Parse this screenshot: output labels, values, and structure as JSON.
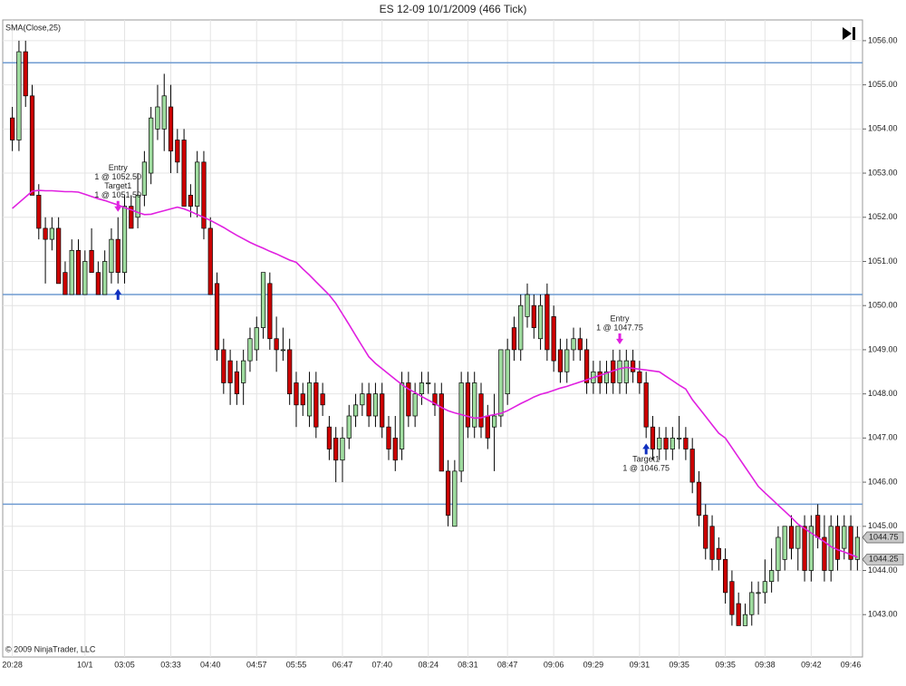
{
  "chart_data": {
    "type": "candlestick",
    "title": "ES 12-09  10/1/2009 (466 Tick)",
    "footer": "© 2009 NinjaTrader, LLC",
    "categories": [
      "20:28",
      null,
      null,
      null,
      null,
      null,
      null,
      null,
      null,
      null,
      null,
      "10/1",
      null,
      null,
      null,
      null,
      null,
      "03:05",
      null,
      null,
      null,
      null,
      null,
      null,
      "03:33",
      null,
      null,
      null,
      null,
      null,
      "04:40",
      null,
      null,
      null,
      null,
      null,
      null,
      "04:57",
      null,
      null,
      null,
      null,
      null,
      "05:55",
      null,
      null,
      null,
      null,
      null,
      null,
      "06:47",
      null,
      null,
      null,
      null,
      null,
      "07:40",
      null,
      null,
      null,
      null,
      null,
      null,
      "08:24",
      null,
      null,
      null,
      null,
      null,
      "08:31",
      null,
      null,
      null,
      null,
      null,
      "08:47",
      null,
      null,
      null,
      null,
      null,
      null,
      "09:06",
      null,
      null,
      null,
      null,
      null,
      "09:29",
      null,
      null,
      null,
      null,
      null,
      null,
      "09:31",
      null,
      null,
      null,
      null,
      null,
      "09:35",
      null,
      null,
      null,
      null,
      null,
      null,
      "09:35",
      null,
      null,
      null,
      null,
      null,
      "09:38",
      null,
      null,
      null,
      null,
      null,
      null,
      "09:42",
      null,
      null,
      null,
      null,
      null,
      "09:46",
      null
    ],
    "open": [
      1054.25,
      1053.75,
      1055.75,
      1054.75,
      1052.5,
      1051.75,
      1051.5,
      1051.75,
      1050.75,
      1050.25,
      1051.25,
      1050.25,
      1051.25,
      1050.75,
      1050.25,
      1050.75,
      1051.5,
      1050.75,
      1052.25,
      1052,
      1052.5,
      1053,
      1054,
      1054,
      1054.5,
      1053.75,
      1053.75,
      1052.5,
      1052.25,
      1053.25,
      1051.75,
      1050.5,
      1049,
      1048.75,
      1048.5,
      1048.25,
      1048.75,
      1049,
      1049.5,
      1050.5,
      1049.25,
      1049,
      1049,
      1048.25,
      1048,
      1047.5,
      1048.25,
      1048,
      1047.25,
      1047,
      1046.5,
      1047,
      1047.5,
      1047.75,
      1048,
      1047.5,
      1048,
      1047.25,
      1047,
      1046.75,
      1048.25,
      1047.5,
      1048,
      1048.25,
      1048,
      1048,
      1046.25,
      1045,
      1046.25,
      1048.25,
      1047.25,
      1048,
      1047.5,
      1047.25,
      1047.5,
      1048,
      1049.5,
      1049,
      1049.75,
      1050,
      1049.25,
      1050.25,
      1049.75,
      1049,
      1048.5,
      1049,
      1049.25,
      1049,
      1048.25,
      1048.5,
      1048.25,
      1048.75,
      1048.25,
      1048.25,
      1048.75,
      1048.5,
      1048.25,
      1047.25,
      1046.75,
      1047,
      1046.75,
      1047,
      1047,
      1046.75,
      1046,
      1045.25,
      1045,
      1044.5,
      1044.25,
      1043.75,
      1043.25,
      1042.75,
      1043,
      1043.5,
      1043.5,
      1043.75,
      1044,
      1044.25,
      1045,
      1044.5,
      1045,
      1044,
      1045.25,
      1044.75,
      1044,
      1045,
      1044.5,
      1045,
      1044.25
    ],
    "high": [
      1054.5,
      1056,
      1056,
      1055,
      1052.75,
      1052,
      1052,
      1052,
      1051,
      1051.5,
      1051.5,
      1051.25,
      1051.75,
      1051,
      1051.25,
      1051.75,
      1052,
      1052.5,
      1052.5,
      1053,
      1053.5,
      1054.5,
      1055,
      1055.25,
      1055,
      1054,
      1054,
      1052.75,
      1053.5,
      1053.5,
      1052,
      1050.75,
      1049.25,
      1049,
      1048.75,
      1049,
      1049.5,
      1049.75,
      1050.75,
      1050.75,
      1049.75,
      1049.5,
      1049.25,
      1048.5,
      1048.25,
      1048.5,
      1048.5,
      1048.25,
      1047.5,
      1047.25,
      1047.25,
      1047.75,
      1048,
      1048.25,
      1048.25,
      1048.25,
      1048.25,
      1047.5,
      1047.5,
      1048.5,
      1048.5,
      1048.25,
      1048.5,
      1048.5,
      1048.25,
      1048.25,
      1046.5,
      1046.5,
      1048.5,
      1048.5,
      1048.5,
      1048.25,
      1047.75,
      1048,
      1049,
      1049.25,
      1049.75,
      1050.25,
      1050.5,
      1050.25,
      1050.25,
      1050.5,
      1050,
      1049.25,
      1049.25,
      1049.5,
      1049.5,
      1049.25,
      1048.75,
      1048.75,
      1048.75,
      1049,
      1049,
      1049,
      1049,
      1048.75,
      1048.5,
      1047.5,
      1047.25,
      1047.25,
      1047.25,
      1047.5,
      1047.25,
      1047,
      1046.25,
      1045.5,
      1045.25,
      1044.75,
      1044.5,
      1044,
      1043.5,
      1043.25,
      1043.75,
      1043.75,
      1044.25,
      1044.5,
      1045,
      1045,
      1045.25,
      1045,
      1045.25,
      1045.25,
      1045.5,
      1045.25,
      1045.25,
      1045.25,
      1045.25,
      1045.25,
      1045
    ],
    "low": [
      1053.5,
      1053.5,
      1054.5,
      1052.5,
      1051.5,
      1050.5,
      1051.25,
      1050.5,
      1050.25,
      1050.25,
      1050.25,
      1050.25,
      1050.75,
      1050.25,
      1050.25,
      1050.5,
      1050.5,
      1050.5,
      1051.75,
      1051.75,
      1052.25,
      1052.75,
      1053.75,
      1053.5,
      1053,
      1053,
      1052.25,
      1052,
      1052,
      1051.5,
      1050.25,
      1048.75,
      1048,
      1047.75,
      1047.75,
      1047.75,
      1048.5,
      1048.75,
      1049.25,
      1049,
      1048.5,
      1048.75,
      1047.75,
      1047.25,
      1047.5,
      1047.25,
      1047,
      1047.5,
      1046.5,
      1046,
      1046,
      1046.75,
      1047.25,
      1047.5,
      1047.25,
      1047.25,
      1047,
      1046.5,
      1046.25,
      1046.5,
      1047.25,
      1047.25,
      1047.75,
      1048,
      1047.5,
      1046.25,
      1045,
      1045,
      1046,
      1047,
      1047,
      1047,
      1046.75,
      1046.25,
      1047.25,
      1047.75,
      1048.75,
      1048.75,
      1049.5,
      1049.25,
      1049,
      1048.75,
      1048.5,
      1048.25,
      1048.25,
      1048.75,
      1048.75,
      1048,
      1048,
      1048,
      1048,
      1048,
      1048,
      1048,
      1048.25,
      1048,
      1047,
      1046.5,
      1046.5,
      1046.5,
      1046.5,
      1046.75,
      1046.5,
      1045.75,
      1045,
      1044.25,
      1044,
      1044,
      1043.25,
      1042.75,
      1042.75,
      1042.75,
      1042.75,
      1043,
      1043.25,
      1043.5,
      1043.75,
      1044,
      1044.25,
      1044,
      1043.75,
      1043.75,
      1044.5,
      1043.75,
      1043.75,
      1044,
      1044.25,
      1044,
      1044
    ],
    "close": [
      1053.75,
      1055.75,
      1054.75,
      1052.5,
      1051.75,
      1051.5,
      1051.75,
      1050.5,
      1050.25,
      1051.25,
      1050.25,
      1051,
      1050.75,
      1050.25,
      1051,
      1051.5,
      1050.75,
      1052.25,
      1051.75,
      1052.5,
      1053.25,
      1054.25,
      1054.5,
      1054.75,
      1053.5,
      1053.25,
      1052.25,
      1052.25,
      1053.25,
      1051.75,
      1050.25,
      1049,
      1048.25,
      1048.25,
      1048,
      1048.75,
      1049.25,
      1049.5,
      1050.75,
      1049.25,
      1049,
      1049,
      1048,
      1047.75,
      1047.75,
      1048.25,
      1047.25,
      1047.75,
      1046.75,
      1046.5,
      1047,
      1047.5,
      1047.75,
      1048,
      1047.5,
      1048,
      1047.25,
      1046.75,
      1046.5,
      1048.25,
      1047.5,
      1048,
      1048.25,
      1048.25,
      1047.75,
      1046.25,
      1045.25,
      1046.25,
      1048.25,
      1047.25,
      1048.25,
      1047.25,
      1047,
      1047.5,
      1049,
      1049,
      1049,
      1050,
      1050.25,
      1049.5,
      1050,
      1049,
      1048.75,
      1048.5,
      1049,
      1049.25,
      1049,
      1048.25,
      1048.5,
      1048.25,
      1048.5,
      1048.25,
      1048.75,
      1048.75,
      1048.5,
      1048.25,
      1047.25,
      1046.75,
      1047,
      1046.75,
      1047,
      1047,
      1046.75,
      1046,
      1045.25,
      1044.5,
      1044.25,
      1044.25,
      1043.5,
      1043,
      1042.75,
      1043,
      1043.5,
      1043.5,
      1043.75,
      1044,
      1044.75,
      1045,
      1044.5,
      1045,
      1044,
      1045,
      1044.75,
      1044,
      1045,
      1044.25,
      1045,
      1044.25,
      1044.75
    ],
    "up_color": "#9fdc9f",
    "down_color": "#cc0000",
    "series": [
      {
        "name": "SMA(Close,25)",
        "color": "#e020e0",
        "values": [
          1052.2,
          1052.33,
          1052.46,
          1052.59,
          1052.61,
          1052.6,
          1052.6,
          1052.59,
          1052.58,
          1052.58,
          1052.57,
          1052.52,
          1052.47,
          1052.42,
          1052.38,
          1052.33,
          1052.28,
          1052.22,
          1052.17,
          1052.11,
          1052.06,
          1052.07,
          1052.11,
          1052.15,
          1052.19,
          1052.23,
          1052.19,
          1052.13,
          1052.06,
          1052.0,
          1051.93,
          1051.85,
          1051.77,
          1051.68,
          1051.59,
          1051.51,
          1051.43,
          1051.36,
          1051.3,
          1051.23,
          1051.17,
          1051.1,
          1051.03,
          1050.98,
          1050.83,
          1050.69,
          1050.54,
          1050.39,
          1050.24,
          1050.05,
          1049.81,
          1049.57,
          1049.32,
          1049.08,
          1048.84,
          1048.69,
          1048.57,
          1048.45,
          1048.33,
          1048.21,
          1048.11,
          1048.03,
          1047.94,
          1047.86,
          1047.78,
          1047.69,
          1047.62,
          1047.57,
          1047.53,
          1047.49,
          1047.45,
          1047.46,
          1047.5,
          1047.53,
          1047.56,
          1047.62,
          1047.7,
          1047.78,
          1047.85,
          1047.93,
          1047.99,
          1048.03,
          1048.08,
          1048.13,
          1048.17,
          1048.22,
          1048.27,
          1048.32,
          1048.37,
          1048.42,
          1048.47,
          1048.52,
          1048.57,
          1048.6,
          1048.58,
          1048.56,
          1048.54,
          1048.52,
          1048.5,
          1048.4,
          1048.3,
          1048.2,
          1048.11,
          1047.87,
          1047.68,
          1047.49,
          1047.3,
          1047.11,
          1047.0,
          1046.78,
          1046.56,
          1046.34,
          1046.12,
          1045.9,
          1045.76,
          1045.62,
          1045.48,
          1045.34,
          1045.2,
          1045.05,
          1044.95,
          1044.85,
          1044.75,
          1044.65,
          1044.54,
          1044.47,
          1044.42,
          1044.36,
          1044.3
        ]
      }
    ],
    "hlines": [
      1055.5,
      1050.25,
      1045.5
    ],
    "hline_color": "#6f9bd1",
    "price_markers": [
      {
        "value": 1044.75,
        "label": "1044.75"
      },
      {
        "value": 1044.25,
        "label": "1044.25"
      }
    ],
    "annotations": [
      {
        "bar": 16,
        "text": [
          "Entry",
          "1 @ 1052.50",
          "Target1",
          "1 @ 1051.50"
        ]
      },
      {
        "bar": 92,
        "text": [
          "Entry",
          "1 @ 1047.75"
        ]
      },
      {
        "bar": 96,
        "text": [
          "Target1",
          "1 @ 1046.75"
        ],
        "below": true
      }
    ],
    "arrows": [
      {
        "bar": 16,
        "dir": "down",
        "color": "#e020e0"
      },
      {
        "bar": 16,
        "dir": "up",
        "color": "#1030c0"
      },
      {
        "bar": 92,
        "dir": "down",
        "color": "#e020e0"
      },
      {
        "bar": 96,
        "dir": "up",
        "color": "#1030c0"
      }
    ],
    "ylim": [
      1042.04,
      1056.47
    ],
    "yticks": [
      {
        "value": 1043,
        "label": "1043.00"
      },
      {
        "value": 1044,
        "label": "1044.00"
      },
      {
        "value": 1045,
        "label": "1045.00"
      },
      {
        "value": 1046,
        "label": "1046.00"
      },
      {
        "value": 1047,
        "label": "1047.00"
      },
      {
        "value": 1048,
        "label": "1048.00"
      },
      {
        "value": 1049,
        "label": "1049.00"
      },
      {
        "value": 1050,
        "label": "1050.00"
      },
      {
        "value": 1051,
        "label": "1051.00"
      },
      {
        "value": 1052,
        "label": "1052.00"
      },
      {
        "value": 1053,
        "label": "1053.00"
      },
      {
        "value": 1054,
        "label": "1054.00"
      },
      {
        "value": 1055,
        "label": "1055.00"
      },
      {
        "value": 1056,
        "label": "1056.00"
      }
    ],
    "grid": true
  }
}
